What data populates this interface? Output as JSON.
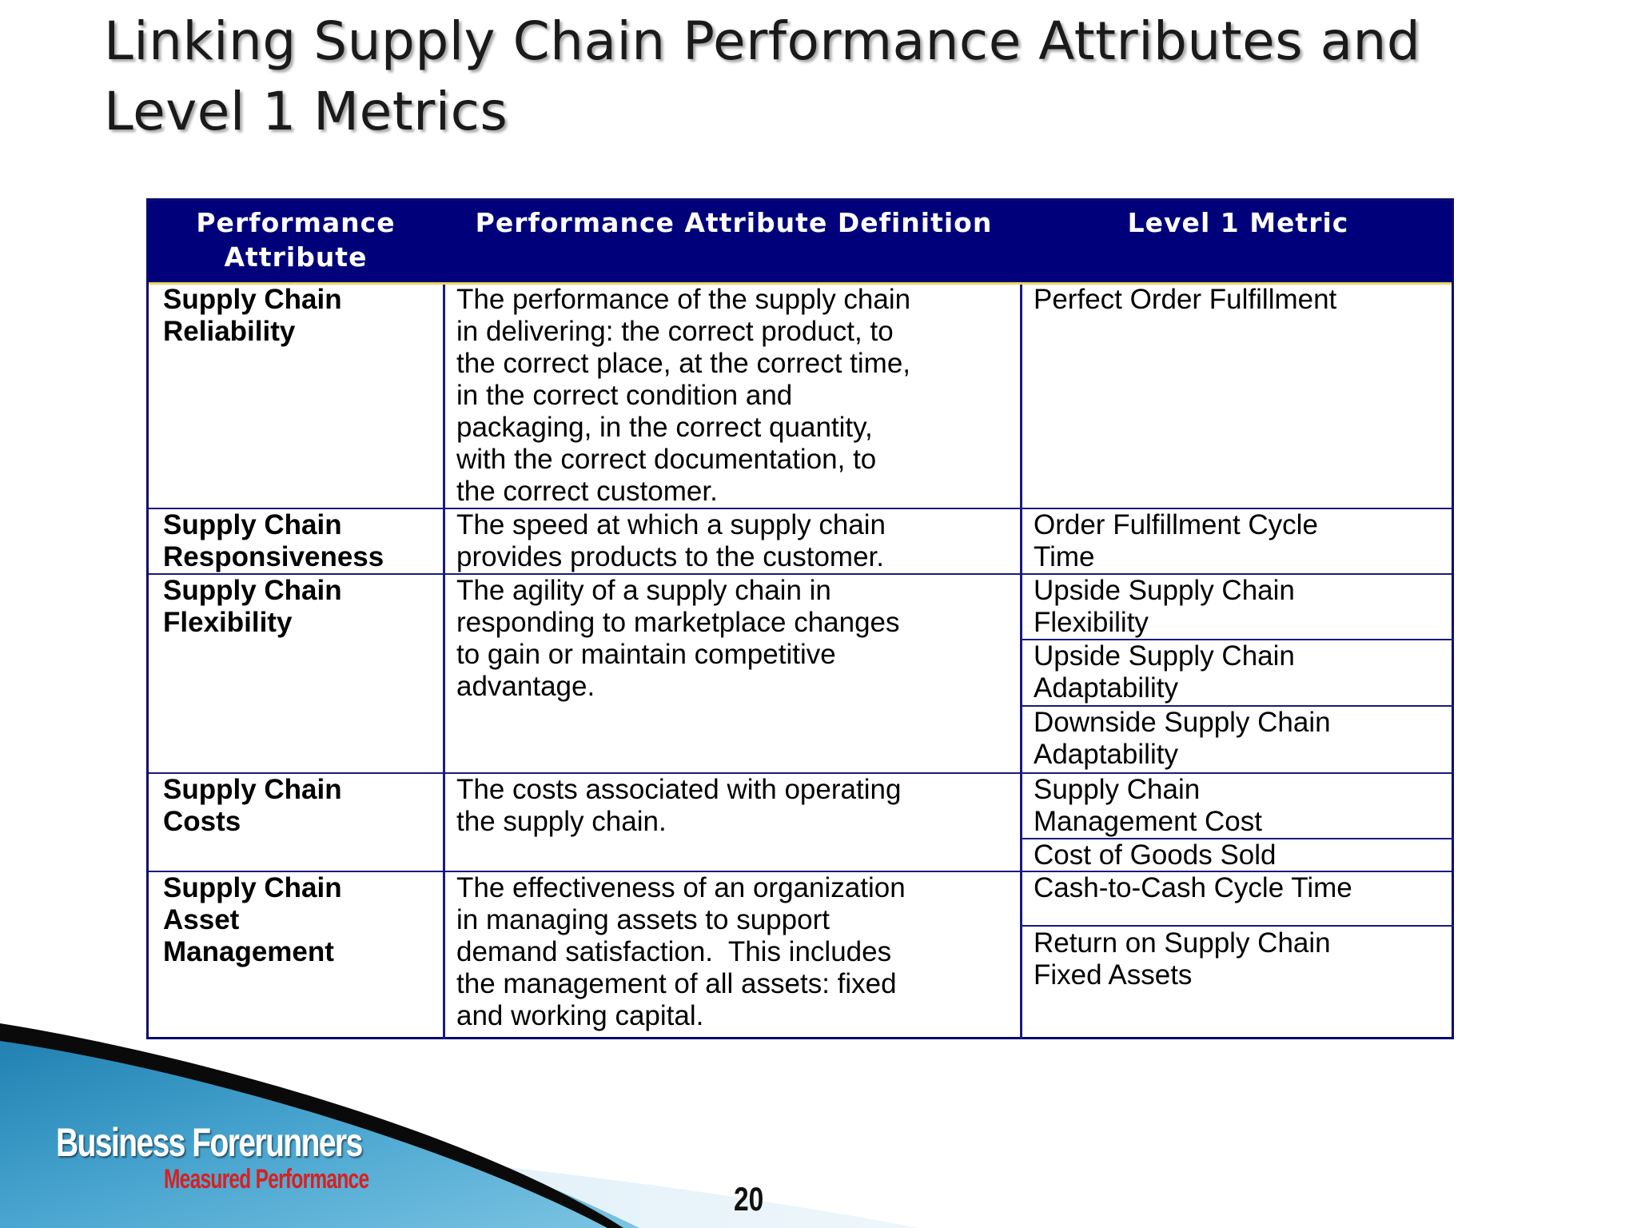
{
  "slide": {
    "title_line1": "Linking Supply Chain Performance Attributes and",
    "title_line2": "Level 1 Metrics",
    "page_number": "20"
  },
  "table": {
    "headers": {
      "attribute_line1": "Performance",
      "attribute_line2": "Attribute",
      "definition": "Performance Attribute Definition",
      "metric": "Level 1 Metric"
    },
    "rows": [
      {
        "attribute": [
          "Supply Chain",
          "Reliability"
        ],
        "definition": [
          "The performance of the supply chain",
          "in delivering: the correct product, to",
          "the correct place, at the correct time,",
          "in the correct condition and",
          "packaging, in the correct quantity,",
          "with the correct documentation, to",
          "the correct customer."
        ],
        "metrics": [
          [
            "Perfect Order Fulfillment"
          ]
        ]
      },
      {
        "attribute": [
          "Supply Chain",
          "Responsiveness"
        ],
        "definition": [
          "The speed at which a supply chain",
          "provides products to the customer."
        ],
        "metrics": [
          [
            "Order Fulfillment Cycle",
            "Time"
          ]
        ]
      },
      {
        "attribute": [
          "Supply Chain",
          "Flexibility"
        ],
        "definition": [
          "The agility of a supply chain in",
          "responding to marketplace changes",
          "to gain or maintain competitive",
          "advantage."
        ],
        "metrics": [
          [
            "Upside Supply Chain",
            "Flexibility"
          ],
          [
            "Upside Supply Chain",
            "Adaptability"
          ],
          [
            "Downside Supply Chain",
            "Adaptability"
          ]
        ]
      },
      {
        "attribute": [
          "Supply Chain",
          "Costs"
        ],
        "definition": [
          "The costs associated with operating",
          "the supply chain."
        ],
        "metrics": [
          [
            "Supply Chain",
            "Management Cost"
          ],
          [
            "Cost of Goods Sold"
          ]
        ]
      },
      {
        "attribute": [
          "Supply Chain",
          "Asset",
          "Management"
        ],
        "definition": [
          "The effectiveness of an organization",
          "in managing assets to support",
          "demand satisfaction.  This includes",
          "the management of all assets: fixed",
          "and working capital."
        ],
        "metrics": [
          [
            "Cash-to-Cash Cycle Time"
          ],
          [
            "Return on Supply Chain",
            "Fixed Assets"
          ]
        ]
      }
    ]
  },
  "logo": {
    "name": "Business Forerunners",
    "tagline": "Measured Performance"
  },
  "colors": {
    "header_bg": "#00007a",
    "grid": "#1a1a80",
    "header_rule": "#e8d75a",
    "logo_tagline": "#d82020"
  }
}
